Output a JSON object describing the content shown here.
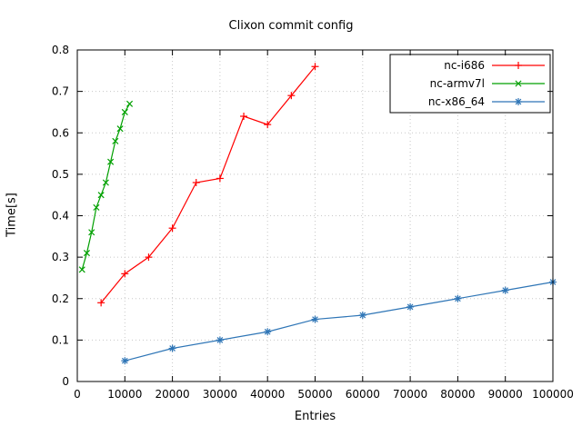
{
  "chart_data": {
    "type": "line",
    "title": "Clixon commit config",
    "xlabel": "Entries",
    "ylabel": "Time[s]",
    "xlim": [
      0,
      100000
    ],
    "ylim": [
      0,
      0.8
    ],
    "grid": true,
    "legend_position": "top-right-inside",
    "colors": {
      "background": "#ffffff",
      "axis": "#000000",
      "grid": "#c8c8c8"
    },
    "xticks": [
      0,
      10000,
      20000,
      30000,
      40000,
      50000,
      60000,
      70000,
      80000,
      90000,
      100000
    ],
    "xtick_labels": [
      "0",
      "10000",
      "20000",
      "30000",
      "40000",
      "50000",
      "60000",
      "70000",
      "80000",
      "90000",
      "100000"
    ],
    "yticks": [
      0,
      0.1,
      0.2,
      0.3,
      0.4,
      0.5,
      0.6,
      0.7,
      0.8
    ],
    "ytick_labels": [
      "0",
      "0.1",
      "0.2",
      "0.3",
      "0.4",
      "0.5",
      "0.6",
      "0.7",
      "0.8"
    ],
    "series": [
      {
        "name": "nc-i686",
        "color": "#ff0000",
        "marker": "plus",
        "x": [
          5000,
          10000,
          15000,
          20000,
          25000,
          30000,
          35000,
          40000,
          45000,
          50000
        ],
        "y": [
          0.19,
          0.26,
          0.3,
          0.37,
          0.48,
          0.49,
          0.64,
          0.62,
          0.69,
          0.76
        ]
      },
      {
        "name": "nc-armv7l",
        "color": "#00a000",
        "marker": "cross",
        "x": [
          1000,
          2000,
          3000,
          4000,
          5000,
          6000,
          7000,
          8000,
          9000,
          10000,
          11000
        ],
        "y": [
          0.27,
          0.31,
          0.36,
          0.42,
          0.45,
          0.48,
          0.53,
          0.58,
          0.61,
          0.65,
          0.67
        ]
      },
      {
        "name": "nc-x86_64",
        "color": "#2e75b6",
        "marker": "asterisk",
        "x": [
          10000,
          20000,
          30000,
          40000,
          50000,
          60000,
          70000,
          80000,
          90000,
          100000
        ],
        "y": [
          0.05,
          0.08,
          0.1,
          0.12,
          0.15,
          0.16,
          0.18,
          0.2,
          0.22,
          0.24
        ]
      }
    ]
  }
}
